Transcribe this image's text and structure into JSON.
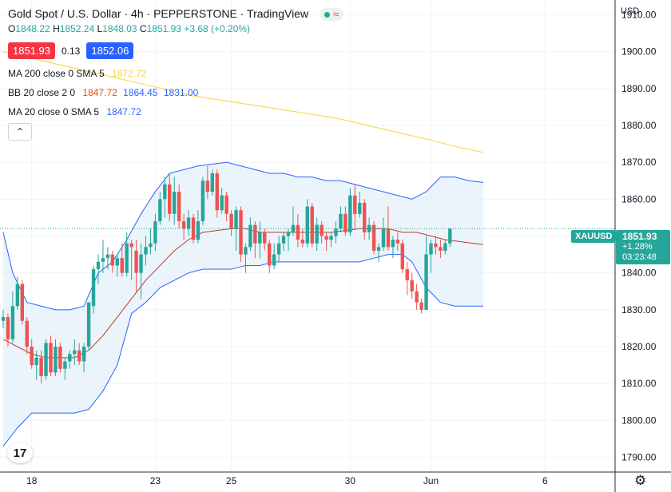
{
  "header": {
    "title": "Gold Spot / U.S. Dollar · 4h · PEPPERSTONE · TradingView",
    "ohlc": {
      "o_label": "O",
      "o": "1848.22",
      "h_label": "H",
      "h": "1852.24",
      "l_label": "L",
      "l": "1848.03",
      "c_label": "C",
      "c": "1851.93",
      "change": "+3.68 (+0.20%)"
    },
    "bid": "1851.93",
    "spread": "0.13",
    "ask": "1852.06"
  },
  "indicators": [
    {
      "label": "MA 200 close 0 SMA 5",
      "values": [
        "1872.72"
      ],
      "colors": [
        "#f5d33e"
      ]
    },
    {
      "label": "BB 20 close 2 0",
      "values": [
        "1847.72",
        "1864.45",
        "1831.00"
      ],
      "colors": [
        "#e65100",
        "#2962ff",
        "#2962ff"
      ]
    },
    {
      "label": "MA 20 close 0 SMA 5",
      "values": [
        "1847.72"
      ],
      "colors": [
        "#2962ff"
      ]
    }
  ],
  "price_axis": {
    "currency": "USD"
  },
  "last_price": {
    "symbol": "XAUUSD",
    "price": "1851.93",
    "change": "+1.28%",
    "countdown": "03:23:48",
    "color": "#26a69a"
  },
  "icons": {
    "logo": "tradingview-logo-icon",
    "settings": "gear-icon",
    "collapse": "chevron-up-icon"
  },
  "chart_data": {
    "type": "candlestick",
    "y_ticks": [
      1910,
      1900,
      1890,
      1880,
      1870,
      1860,
      1850,
      1840,
      1830,
      1820,
      1810,
      1800,
      1790
    ],
    "y_tick_labels": [
      "1910.00",
      "1900.00",
      "1890.00",
      "1880.00",
      "1870.00",
      "1860.00",
      "1850.00",
      "1840.00",
      "1830.00",
      "1820.00",
      "1810.00",
      "1800.00",
      "1790.00"
    ],
    "x_ticks": [
      "18",
      "23",
      "25",
      "30",
      "Jun",
      "6"
    ],
    "x_tick_bar_index": [
      6,
      32,
      48,
      73,
      90,
      114
    ],
    "ylim": [
      1786,
      1914
    ],
    "colors": {
      "up": "#26a69a",
      "down": "#ef5350",
      "bb_basis": "#c0392b",
      "bb_band": "#2962ff",
      "ma200": "#f5d33e",
      "band_fill": "#e3effa"
    },
    "bars": [
      [
        1827,
        1830,
        1825,
        1828
      ],
      [
        1828,
        1829,
        1820,
        1822
      ],
      [
        1822,
        1835,
        1821,
        1831
      ],
      [
        1831,
        1839,
        1830,
        1837
      ],
      [
        1837,
        1838,
        1826,
        1827
      ],
      [
        1827,
        1828,
        1818,
        1820
      ],
      [
        1820,
        1822,
        1814,
        1815
      ],
      [
        1815,
        1819,
        1811,
        1817
      ],
      [
        1817,
        1819,
        1810,
        1812
      ],
      [
        1812,
        1822,
        1811,
        1821
      ],
      [
        1821,
        1823,
        1812,
        1813
      ],
      [
        1813,
        1822,
        1812,
        1820
      ],
      [
        1820,
        1821,
        1813,
        1814
      ],
      [
        1814,
        1817,
        1811,
        1816
      ],
      [
        1816,
        1819,
        1814,
        1818
      ],
      [
        1818,
        1822,
        1815,
        1819
      ],
      [
        1819,
        1821,
        1815,
        1816
      ],
      [
        1816,
        1821,
        1813,
        1820
      ],
      [
        1820,
        1832,
        1819,
        1832
      ],
      [
        1831,
        1842,
        1829,
        1841
      ],
      [
        1841,
        1845,
        1837,
        1843
      ],
      [
        1843,
        1849,
        1840,
        1844
      ],
      [
        1844,
        1847,
        1841,
        1845
      ],
      [
        1845,
        1846,
        1840,
        1842
      ],
      [
        1842,
        1845,
        1839,
        1844
      ],
      [
        1844,
        1848,
        1839,
        1840
      ],
      [
        1840,
        1851,
        1839,
        1848
      ],
      [
        1848,
        1849,
        1838,
        1847
      ],
      [
        1846,
        1849,
        1835,
        1840
      ],
      [
        1840,
        1848,
        1833,
        1845
      ],
      [
        1845,
        1850,
        1842,
        1847
      ],
      [
        1847,
        1852,
        1845,
        1848
      ],
      [
        1848,
        1856,
        1846,
        1854
      ],
      [
        1854,
        1862,
        1853,
        1860
      ],
      [
        1860,
        1866,
        1855,
        1864
      ],
      [
        1864,
        1867,
        1854,
        1856
      ],
      [
        1856,
        1866,
        1853,
        1862
      ],
      [
        1862,
        1864,
        1852,
        1854
      ],
      [
        1854,
        1856,
        1849,
        1852
      ],
      [
        1852,
        1857,
        1850,
        1855
      ],
      [
        1855,
        1856,
        1848,
        1849
      ],
      [
        1849,
        1857,
        1848,
        1854
      ],
      [
        1854,
        1866,
        1853,
        1865
      ],
      [
        1865,
        1869,
        1860,
        1862
      ],
      [
        1862,
        1868,
        1861,
        1867
      ],
      [
        1867,
        1868,
        1855,
        1857
      ],
      [
        1857,
        1863,
        1856,
        1861
      ],
      [
        1861,
        1862,
        1854,
        1856
      ],
      [
        1856,
        1857,
        1850,
        1852
      ],
      [
        1852,
        1858,
        1846,
        1857
      ],
      [
        1857,
        1858,
        1843,
        1845
      ],
      [
        1845,
        1848,
        1840,
        1847
      ],
      [
        1847,
        1855,
        1846,
        1853
      ],
      [
        1853,
        1854,
        1844,
        1848
      ],
      [
        1848,
        1854,
        1844,
        1851
      ],
      [
        1851,
        1852,
        1846,
        1848
      ],
      [
        1848,
        1849,
        1840,
        1842
      ],
      [
        1842,
        1848,
        1841,
        1845
      ],
      [
        1845,
        1850,
        1843,
        1848
      ],
      [
        1848,
        1851,
        1846,
        1850
      ],
      [
        1850,
        1852,
        1846,
        1851
      ],
      [
        1851,
        1858,
        1850,
        1853
      ],
      [
        1853,
        1856,
        1847,
        1849
      ],
      [
        1849,
        1852,
        1847,
        1848
      ],
      [
        1848,
        1860,
        1847,
        1858
      ],
      [
        1858,
        1859,
        1847,
        1848
      ],
      [
        1848,
        1855,
        1846,
        1853
      ],
      [
        1853,
        1854,
        1848,
        1850
      ],
      [
        1850,
        1851,
        1846,
        1849
      ],
      [
        1849,
        1851,
        1847,
        1850
      ],
      [
        1850,
        1854,
        1848,
        1852
      ],
      [
        1852,
        1858,
        1851,
        1856
      ],
      [
        1856,
        1858,
        1850,
        1851
      ],
      [
        1851,
        1863,
        1850,
        1861
      ],
      [
        1861,
        1864,
        1852,
        1856
      ],
      [
        1856,
        1862,
        1855,
        1859
      ],
      [
        1859,
        1860,
        1849,
        1851
      ],
      [
        1851,
        1855,
        1849,
        1853
      ],
      [
        1853,
        1854,
        1845,
        1846
      ],
      [
        1846,
        1848,
        1843,
        1847
      ],
      [
        1847,
        1855,
        1846,
        1852
      ],
      [
        1852,
        1858,
        1846,
        1847
      ],
      [
        1847,
        1850,
        1844,
        1849
      ],
      [
        1849,
        1851,
        1846,
        1848
      ],
      [
        1848,
        1849,
        1840,
        1841
      ],
      [
        1841,
        1843,
        1834,
        1838
      ],
      [
        1838,
        1840,
        1833,
        1835
      ],
      [
        1835,
        1837,
        1830,
        1832
      ],
      [
        1832,
        1833,
        1829,
        1830
      ],
      [
        1830,
        1850,
        1830,
        1845
      ],
      [
        1845,
        1849,
        1840,
        1848
      ],
      [
        1848,
        1850,
        1845,
        1847
      ],
      [
        1847,
        1849,
        1844,
        1846
      ],
      [
        1846,
        1849,
        1845,
        1848
      ],
      [
        1848,
        1852,
        1847,
        1852
      ]
    ],
    "bb_upper": [
      [
        0,
        1851
      ],
      [
        2,
        1840
      ],
      [
        5,
        1832
      ],
      [
        8,
        1831
      ],
      [
        11,
        1830
      ],
      [
        14,
        1830
      ],
      [
        17,
        1831
      ],
      [
        20,
        1840
      ],
      [
        23,
        1843
      ],
      [
        26,
        1849
      ],
      [
        29,
        1856
      ],
      [
        32,
        1862
      ],
      [
        35,
        1867
      ],
      [
        38,
        1868
      ],
      [
        41,
        1869
      ],
      [
        44,
        1869.5
      ],
      [
        47,
        1870
      ],
      [
        50,
        1869
      ],
      [
        53,
        1868
      ],
      [
        56,
        1867
      ],
      [
        59,
        1867
      ],
      [
        62,
        1866
      ],
      [
        65,
        1866
      ],
      [
        68,
        1865
      ],
      [
        71,
        1865
      ],
      [
        74,
        1864
      ],
      [
        77,
        1863
      ],
      [
        80,
        1862
      ],
      [
        83,
        1861
      ],
      [
        86,
        1860
      ],
      [
        89,
        1862
      ],
      [
        92,
        1866
      ],
      [
        95,
        1866
      ],
      [
        98,
        1865
      ],
      [
        101,
        1864.5
      ]
    ],
    "bb_lower": [
      [
        0,
        1793
      ],
      [
        3,
        1798
      ],
      [
        6,
        1802
      ],
      [
        9,
        1802
      ],
      [
        12,
        1802
      ],
      [
        15,
        1802
      ],
      [
        18,
        1803
      ],
      [
        21,
        1808
      ],
      [
        24,
        1815
      ],
      [
        27,
        1829
      ],
      [
        30,
        1832
      ],
      [
        33,
        1836
      ],
      [
        36,
        1838
      ],
      [
        39,
        1840
      ],
      [
        42,
        1841
      ],
      [
        45,
        1841
      ],
      [
        48,
        1841
      ],
      [
        51,
        1842
      ],
      [
        54,
        1842
      ],
      [
        57,
        1843
      ],
      [
        60,
        1843
      ],
      [
        63,
        1843
      ],
      [
        66,
        1843
      ],
      [
        69,
        1843
      ],
      [
        72,
        1843
      ],
      [
        75,
        1843
      ],
      [
        78,
        1844
      ],
      [
        81,
        1845
      ],
      [
        84,
        1845
      ],
      [
        86,
        1843
      ],
      [
        89,
        1836
      ],
      [
        92,
        1832
      ],
      [
        95,
        1831
      ],
      [
        98,
        1831
      ],
      [
        101,
        1831
      ]
    ],
    "bb_basis": [
      [
        0,
        1822
      ],
      [
        3,
        1820
      ],
      [
        6,
        1818
      ],
      [
        9,
        1817
      ],
      [
        12,
        1817
      ],
      [
        15,
        1817
      ],
      [
        18,
        1819
      ],
      [
        21,
        1823
      ],
      [
        24,
        1828
      ],
      [
        27,
        1833
      ],
      [
        30,
        1838
      ],
      [
        33,
        1842
      ],
      [
        36,
        1846
      ],
      [
        39,
        1849
      ],
      [
        42,
        1851
      ],
      [
        45,
        1851.5
      ],
      [
        48,
        1852
      ],
      [
        51,
        1852
      ],
      [
        54,
        1851
      ],
      [
        57,
        1851
      ],
      [
        60,
        1851
      ],
      [
        63,
        1851
      ],
      [
        66,
        1851
      ],
      [
        69,
        1851
      ],
      [
        72,
        1851.5
      ],
      [
        75,
        1852
      ],
      [
        78,
        1852
      ],
      [
        81,
        1852
      ],
      [
        84,
        1851
      ],
      [
        87,
        1851
      ],
      [
        90,
        1850
      ],
      [
        93,
        1849
      ],
      [
        96,
        1848.5
      ],
      [
        99,
        1848
      ],
      [
        101,
        1847.7
      ]
    ],
    "ma200": [
      [
        0,
        1900
      ],
      [
        10,
        1897
      ],
      [
        20,
        1894
      ],
      [
        30,
        1891
      ],
      [
        40,
        1888
      ],
      [
        50,
        1886
      ],
      [
        60,
        1884
      ],
      [
        70,
        1882
      ],
      [
        80,
        1879
      ],
      [
        90,
        1876
      ],
      [
        96,
        1874
      ],
      [
        101,
        1872.7
      ]
    ]
  }
}
